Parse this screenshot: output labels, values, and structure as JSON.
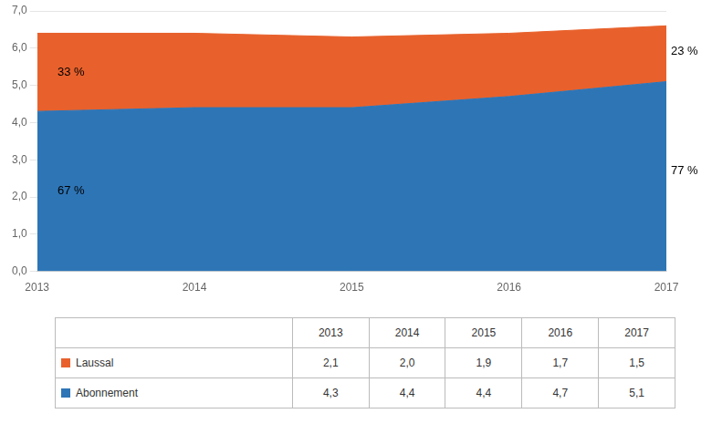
{
  "chart_data": {
    "type": "area",
    "stacked": true,
    "x": [
      2013,
      2014,
      2015,
      2016,
      2017
    ],
    "xlim": [
      2013,
      2017
    ],
    "xticks": [
      2013,
      2014,
      2015,
      2016,
      2017
    ],
    "ylim": [
      0,
      7.0
    ],
    "yticks": [
      {
        "value": 0.0,
        "label": "0,0"
      },
      {
        "value": 1.0,
        "label": "1,0"
      },
      {
        "value": 2.0,
        "label": "2,0"
      },
      {
        "value": 3.0,
        "label": "3,0"
      },
      {
        "value": 4.0,
        "label": "4,0"
      },
      {
        "value": 5.0,
        "label": "5,0"
      },
      {
        "value": 6.0,
        "label": "6,0"
      },
      {
        "value": 7.0,
        "label": "7,0"
      }
    ],
    "grid": true,
    "series": [
      {
        "name": "Abonnement",
        "color": "#2E75B6",
        "values": [
          4.3,
          4.4,
          4.4,
          4.7,
          5.1
        ],
        "value_labels": [
          "4,3",
          "4,4",
          "4,4",
          "4,7",
          "5,1"
        ]
      },
      {
        "name": "Laussal",
        "color": "#E8612C",
        "values": [
          2.1,
          2.0,
          1.9,
          1.7,
          1.5
        ],
        "value_labels": [
          "2,1",
          "2,0",
          "1,9",
          "1,7",
          "1,5"
        ]
      }
    ],
    "annotations": [
      {
        "text": "33 %",
        "x": 2013.1,
        "y": 5.35
      },
      {
        "text": "67 %",
        "x": 2013.1,
        "y": 2.15
      },
      {
        "text": "23 %",
        "x": 2017,
        "y": 5.9
      },
      {
        "text": "77 %",
        "x": 2017,
        "y": 2.7
      }
    ]
  }
}
